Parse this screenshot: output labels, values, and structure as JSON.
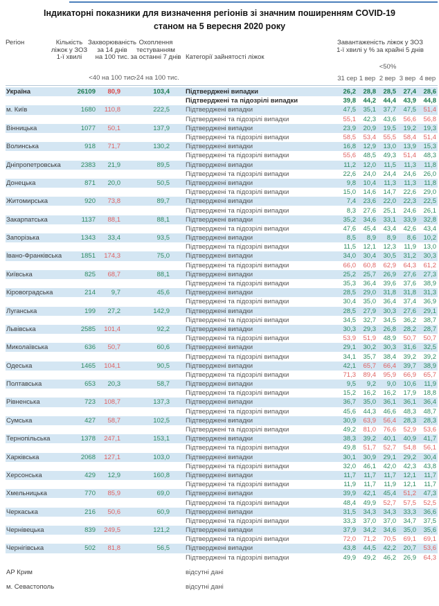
{
  "title": {
    "line1": "Індикаторні показники для визначення регіонів зі значним поширенням COVID-19",
    "line2": "станом на 5 вересня 2020 року"
  },
  "header": {
    "region": "Регіон",
    "beds_lines": [
      "Кількість",
      "ліжок у ЗОЗ",
      "1-ї хвилі"
    ],
    "morbidity_lines": [
      "Захворюваність",
      "за 14 днів",
      "на 100 тис."
    ],
    "testing_lines": [
      "Охоплення",
      "тестуванням",
      "за останні 7 днів"
    ],
    "category": "Категорії зайнятості ліжок",
    "occupancy_lines": [
      "Завантаженість ліжок у ЗОЗ",
      "1-ї хвилі у % за крайні 5 днів"
    ],
    "occupancy_threshold": "<50%",
    "morbidity_threshold": "<40 на 100 тис.",
    "testing_threshold": ">24 на 100 тис.",
    "dates": [
      "31 сер",
      "1 вер",
      "2 вер",
      "3 вер",
      "4 вер"
    ]
  },
  "categories": {
    "confirmed": "Підтверджені випадки",
    "suspected": "Підтверджені та підозрілі випадки"
  },
  "no_data_label": "відсутні дані",
  "no_data_regions": [
    "АР Крим",
    "м. Севастополь"
  ],
  "colors": {
    "row_highlight": "#d4e6f3",
    "value_green": "#2f8b62",
    "value_red": "#df6262",
    "bold_green": "#1c7a4f",
    "bold_red": "#dc4848",
    "top_line_blue": "#4a7ebb",
    "separator": "#b3c6d6"
  },
  "regions": [
    {
      "name": "Україна",
      "bold": true,
      "beds": "26109",
      "morbidity": "80,9",
      "testing": "103,4",
      "confirmed": [
        "26,2",
        "28,8",
        "28,5",
        "27,4",
        "28,6"
      ],
      "suspected": [
        "39,8",
        "44,2",
        "44,4",
        "43,9",
        "44,8"
      ]
    },
    {
      "name": "м. Київ",
      "beds": "1680",
      "morbidity": "110,8",
      "testing": "222,5",
      "confirmed": [
        "47,5",
        "35,1",
        "37,7",
        "47,5",
        "51,4"
      ],
      "suspected": [
        "55,1",
        "42,3",
        "43,6",
        "56,6",
        "56,8"
      ]
    },
    {
      "name": "Вінницька",
      "beds": "1077",
      "morbidity": "50,1",
      "testing": "137,9",
      "confirmed": [
        "23,9",
        "20,9",
        "19,5",
        "19,2",
        "19,3"
      ],
      "suspected": [
        "58,5",
        "53,4",
        "55,5",
        "58,4",
        "51,4"
      ]
    },
    {
      "name": "Волинська",
      "beds": "918",
      "morbidity": "71,7",
      "testing": "130,2",
      "confirmed": [
        "16,8",
        "12,9",
        "13,0",
        "13,9",
        "15,3"
      ],
      "suspected": [
        "55,6",
        "48,5",
        "49,3",
        "51,4",
        "48,3"
      ]
    },
    {
      "name": "Дніпропетровська",
      "beds": "2383",
      "morbidity": "21,9",
      "testing": "89,5",
      "confirmed": [
        "11,2",
        "12,0",
        "11,5",
        "11,3",
        "11,8"
      ],
      "suspected": [
        "22,6",
        "24,0",
        "24,4",
        "24,6",
        "26,0"
      ]
    },
    {
      "name": "Донецька",
      "beds": "871",
      "morbidity": "20,0",
      "testing": "50,5",
      "confirmed": [
        "9,8",
        "10,4",
        "11,3",
        "11,3",
        "11,8"
      ],
      "suspected": [
        "15,0",
        "14,6",
        "14,7",
        "22,6",
        "29,0"
      ]
    },
    {
      "name": "Житомирська",
      "beds": "920",
      "morbidity": "73,8",
      "testing": "89,7",
      "confirmed": [
        "7,4",
        "23,6",
        "22,0",
        "22,3",
        "22,5"
      ],
      "suspected": [
        "8,3",
        "27,6",
        "25,1",
        "24,6",
        "26,1"
      ]
    },
    {
      "name": "Закарпатська",
      "beds": "1137",
      "morbidity": "88,1",
      "testing": "88,1",
      "confirmed": [
        "35,2",
        "34,6",
        "33,1",
        "33,9",
        "32,8"
      ],
      "suspected": [
        "47,6",
        "45,4",
        "43,4",
        "42,6",
        "43,4"
      ]
    },
    {
      "name": "Запорізька",
      "beds": "1343",
      "morbidity": "33,4",
      "testing": "93,5",
      "confirmed": [
        "8,5",
        "8,9",
        "8,9",
        "8,6",
        "10,2"
      ],
      "suspected": [
        "11,5",
        "12,1",
        "12,3",
        "11,9",
        "13,0"
      ]
    },
    {
      "name": "Івано-Франківська",
      "beds": "1851",
      "morbidity": "174,3",
      "testing": "75,0",
      "confirmed": [
        "34,0",
        "30,4",
        "30,5",
        "31,2",
        "30,3"
      ],
      "suspected": [
        "66,0",
        "60,8",
        "62,9",
        "64,3",
        "61,2"
      ]
    },
    {
      "name": "Київська",
      "beds": "825",
      "morbidity": "68,7",
      "testing": "88,1",
      "confirmed": [
        "25,2",
        "25,7",
        "26,9",
        "27,6",
        "27,3"
      ],
      "suspected": [
        "35,3",
        "36,4",
        "39,6",
        "37,6",
        "38,9"
      ]
    },
    {
      "name": "Кіровоградська",
      "beds": "214",
      "morbidity": "9,7",
      "testing": "45,6",
      "confirmed": [
        "28,5",
        "29,0",
        "31,8",
        "31,8",
        "31,3"
      ],
      "suspected": [
        "30,4",
        "35,0",
        "36,4",
        "37,4",
        "36,9"
      ]
    },
    {
      "name": "Луганська",
      "beds": "199",
      "morbidity": "27,2",
      "testing": "142,9",
      "confirmed": [
        "28,5",
        "27,9",
        "30,3",
        "27,6",
        "29,1"
      ],
      "suspected": [
        "34,5",
        "32,7",
        "34,5",
        "36,2",
        "38,7"
      ]
    },
    {
      "name": "Львівська",
      "beds": "2585",
      "morbidity": "101,4",
      "testing": "92,2",
      "confirmed": [
        "30,3",
        "29,3",
        "26,8",
        "28,2",
        "28,7"
      ],
      "suspected": [
        "53,9",
        "51,9",
        "48,9",
        "50,7",
        "50,7"
      ]
    },
    {
      "name": "Миколаївська",
      "beds": "636",
      "morbidity": "50,7",
      "testing": "60,6",
      "confirmed": [
        "29,1",
        "30,2",
        "30,3",
        "31,6",
        "32,5"
      ],
      "suspected": [
        "34,1",
        "35,7",
        "38,4",
        "39,2",
        "39,2"
      ]
    },
    {
      "name": "Одеська",
      "beds": "1465",
      "morbidity": "104,1",
      "testing": "90,5",
      "confirmed": [
        "42,1",
        "65,7",
        "66,4",
        "39,7",
        "38,9"
      ],
      "suspected": [
        "71,3",
        "89,4",
        "95,9",
        "66,9",
        "65,7"
      ]
    },
    {
      "name": "Полтавська",
      "beds": "653",
      "morbidity": "20,3",
      "testing": "58,7",
      "confirmed": [
        "9,5",
        "9,2",
        "9,0",
        "10,6",
        "11,9"
      ],
      "suspected": [
        "15,2",
        "16,2",
        "16,2",
        "17,9",
        "18,8"
      ]
    },
    {
      "name": "Рівненська",
      "beds": "723",
      "morbidity": "108,7",
      "testing": "137,3",
      "confirmed": [
        "36,7",
        "35,0",
        "36,1",
        "36,1",
        "36,4"
      ],
      "suspected": [
        "45,6",
        "44,3",
        "46,6",
        "48,3",
        "48,7"
      ]
    },
    {
      "name": "Сумська",
      "beds": "427",
      "morbidity": "58,7",
      "testing": "102,5",
      "confirmed": [
        "30,9",
        "63,9",
        "56,4",
        "28,3",
        "28,3"
      ],
      "suspected": [
        "49,2",
        "81,0",
        "76,6",
        "52,9",
        "53,6"
      ]
    },
    {
      "name": "Тернопільська",
      "beds": "1378",
      "morbidity": "247,1",
      "testing": "153,1",
      "confirmed": [
        "38,3",
        "39,2",
        "40,1",
        "40,9",
        "41,7"
      ],
      "suspected": [
        "49,8",
        "51,7",
        "52,7",
        "54,8",
        "56,1"
      ]
    },
    {
      "name": "Харківська",
      "beds": "2068",
      "morbidity": "127,1",
      "testing": "103,0",
      "confirmed": [
        "30,1",
        "30,9",
        "29,1",
        "29,2",
        "30,4"
      ],
      "suspected": [
        "32,0",
        "46,1",
        "42,0",
        "42,3",
        "43,8"
      ]
    },
    {
      "name": "Херсонська",
      "beds": "429",
      "morbidity": "12,9",
      "testing": "160,8",
      "confirmed": [
        "11,7",
        "11,7",
        "11,7",
        "12,1",
        "11,7"
      ],
      "suspected": [
        "11,9",
        "11,7",
        "11,9",
        "12,1",
        "11,7"
      ]
    },
    {
      "name": "Хмельницька",
      "beds": "770",
      "morbidity": "85,9",
      "testing": "69,0",
      "confirmed": [
        "39,9",
        "42,1",
        "45,4",
        "51,2",
        "47,3"
      ],
      "suspected": [
        "48,4",
        "49,9",
        "52,7",
        "57,5",
        "52,5"
      ]
    },
    {
      "name": "Черкаська",
      "beds": "216",
      "morbidity": "50,6",
      "testing": "60,9",
      "confirmed": [
        "31,5",
        "34,3",
        "34,3",
        "33,3",
        "36,6"
      ],
      "suspected": [
        "33,3",
        "37,0",
        "37,0",
        "34,7",
        "37,5"
      ]
    },
    {
      "name": "Чернівецька",
      "beds": "839",
      "morbidity": "249,5",
      "testing": "121,2",
      "confirmed": [
        "37,9",
        "34,2",
        "34,6",
        "35,0",
        "35,6"
      ],
      "suspected": [
        "72,0",
        "71,2",
        "70,5",
        "69,1",
        "69,1"
      ]
    },
    {
      "name": "Чернігівська",
      "beds": "502",
      "morbidity": "81,8",
      "testing": "56,5",
      "confirmed": [
        "43,8",
        "44,5",
        "42,2",
        "20,7",
        "53,6"
      ],
      "suspected": [
        "49,9",
        "49,2",
        "46,2",
        "26,9",
        "64,3"
      ]
    }
  ]
}
